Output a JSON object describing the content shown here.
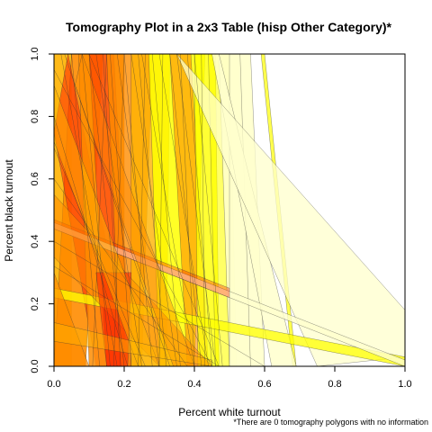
{
  "chart_data": {
    "type": "tomography",
    "title": "Tomography Plot in a 2x3 Table (hisp Other Category)*",
    "xlabel": "Percent white turnout",
    "ylabel": "Percent black turnout",
    "footnote": "*There are 0 tomography polygons with no information",
    "xlim": [
      0,
      1
    ],
    "ylim": [
      0,
      1
    ],
    "xticks": [
      "0.0",
      "0.2",
      "0.4",
      "0.6",
      "0.8",
      "1.0"
    ],
    "yticks": [
      "0.0",
      "0.2",
      "0.4",
      "0.6",
      "0.8",
      "1.0"
    ],
    "colors": {
      "red": "#ff2200",
      "orange": "#ff8c00",
      "amber": "#ffb300",
      "yellow": "#ffff00",
      "pale": "#ffffcc",
      "outline": "#333333"
    },
    "polygons": [
      {
        "color": "amber",
        "opacity": 0.9,
        "points": [
          [
            0,
            0
          ],
          [
            0.05,
            0
          ],
          [
            0.05,
            1
          ],
          [
            0,
            1
          ]
        ]
      },
      {
        "color": "orange",
        "opacity": 0.9,
        "points": [
          [
            0.05,
            1
          ],
          [
            0.14,
            1
          ],
          [
            0.09,
            0
          ],
          [
            0.0,
            0
          ]
        ]
      },
      {
        "color": "red",
        "opacity": 0.55,
        "points": [
          [
            0.0,
            0.75
          ],
          [
            0.04,
            1
          ],
          [
            0.22,
            0.0
          ],
          [
            0.12,
            0.0
          ]
        ]
      },
      {
        "color": "orange",
        "opacity": 0.85,
        "points": [
          [
            0.07,
            1
          ],
          [
            0.2,
            1
          ],
          [
            0.2,
            0
          ],
          [
            0.1,
            0
          ]
        ]
      },
      {
        "color": "red",
        "opacity": 0.5,
        "points": [
          [
            0.1,
            1
          ],
          [
            0.17,
            1
          ],
          [
            0.22,
            0
          ],
          [
            0.15,
            0
          ]
        ]
      },
      {
        "color": "orange",
        "opacity": 0.8,
        "points": [
          [
            0.15,
            1
          ],
          [
            0.28,
            1
          ],
          [
            0.25,
            0
          ],
          [
            0.19,
            0
          ]
        ]
      },
      {
        "color": "amber",
        "opacity": 0.8,
        "points": [
          [
            0.22,
            1
          ],
          [
            0.33,
            1
          ],
          [
            0.32,
            0
          ],
          [
            0.22,
            0
          ]
        ]
      },
      {
        "color": "yellow",
        "opacity": 0.85,
        "points": [
          [
            0.27,
            1
          ],
          [
            0.43,
            1
          ],
          [
            0.4,
            0
          ],
          [
            0.3,
            0
          ]
        ]
      },
      {
        "color": "orange",
        "opacity": 0.6,
        "points": [
          [
            0.33,
            1
          ],
          [
            0.39,
            1
          ],
          [
            0.44,
            0
          ],
          [
            0.38,
            0
          ]
        ]
      },
      {
        "color": "yellow",
        "opacity": 0.8,
        "points": [
          [
            0.4,
            1
          ],
          [
            0.46,
            1
          ],
          [
            0.47,
            0
          ],
          [
            0.41,
            0
          ]
        ]
      },
      {
        "color": "yellow",
        "opacity": 0.6,
        "points": [
          [
            0.44,
            1
          ],
          [
            0.5,
            1
          ],
          [
            0.52,
            0
          ],
          [
            0.46,
            0
          ]
        ]
      },
      {
        "color": "pale",
        "opacity": 0.9,
        "points": [
          [
            0.47,
            1
          ],
          [
            0.56,
            1
          ],
          [
            0.6,
            0
          ],
          [
            0.5,
            0
          ]
        ]
      },
      {
        "color": "pale",
        "opacity": 0.8,
        "points": [
          [
            0.5,
            1
          ],
          [
            0.53,
            1
          ],
          [
            0.56,
            0
          ],
          [
            0.5,
            0
          ]
        ]
      },
      {
        "color": "yellow",
        "opacity": 0.7,
        "points": [
          [
            0.59,
            1
          ],
          [
            0.6,
            1
          ],
          [
            0.69,
            0
          ],
          [
            0.68,
            0
          ]
        ]
      },
      {
        "color": "pale",
        "opacity": 0.85,
        "points": [
          [
            0.45,
            1
          ],
          [
            0.47,
            1
          ],
          [
            0.69,
            0
          ],
          [
            0.62,
            0
          ]
        ]
      },
      {
        "color": "pale",
        "opacity": 0.75,
        "points": [
          [
            0.35,
            1
          ],
          [
            1.0,
            0.18
          ],
          [
            1.0,
            0.03
          ],
          [
            0.75,
            0.0
          ]
        ]
      },
      {
        "color": "yellow",
        "opacity": 0.75,
        "points": [
          [
            0.0,
            0.25
          ],
          [
            1.0,
            0.03
          ],
          [
            1.0,
            0.0
          ],
          [
            0.0,
            0.22
          ]
        ]
      },
      {
        "color": "pale",
        "opacity": 0.8,
        "points": [
          [
            0.0,
            0.46
          ],
          [
            1.0,
            0.02
          ],
          [
            1.0,
            0.0
          ],
          [
            0.0,
            0.44
          ]
        ]
      },
      {
        "color": "red",
        "opacity": 0.35,
        "points": [
          [
            0.0,
            0.47
          ],
          [
            0.5,
            0.25
          ],
          [
            0.5,
            0.22
          ],
          [
            0.0,
            0.44
          ]
        ]
      },
      {
        "color": "orange",
        "opacity": 0.55,
        "points": [
          [
            0.0,
            0.55
          ],
          [
            0.45,
            0.0
          ],
          [
            0.3,
            0.0
          ],
          [
            0.0,
            0.35
          ]
        ]
      },
      {
        "color": "red",
        "opacity": 0.55,
        "points": [
          [
            0.12,
            0.3
          ],
          [
            0.22,
            0.3
          ],
          [
            0.21,
            0.0
          ],
          [
            0.15,
            0.0
          ]
        ]
      },
      {
        "color": "orange",
        "opacity": 0.7,
        "points": [
          [
            0.0,
            0.3
          ],
          [
            0.1,
            0.0
          ],
          [
            0.0,
            0.0
          ]
        ]
      },
      {
        "color": "amber",
        "opacity": 0.5,
        "points": [
          [
            0.0,
            0.9
          ],
          [
            0.3,
            0.0
          ],
          [
            0.24,
            0.0
          ],
          [
            0.0,
            0.72
          ]
        ]
      },
      {
        "color": "orange",
        "opacity": 0.45,
        "points": [
          [
            0.08,
            1
          ],
          [
            0.4,
            0.0
          ],
          [
            0.34,
            0.0
          ],
          [
            0.06,
            0.9
          ]
        ]
      },
      {
        "color": "amber",
        "opacity": 0.45,
        "points": [
          [
            0.0,
            0.14
          ],
          [
            0.45,
            0.02
          ],
          [
            0.45,
            0.0
          ],
          [
            0.0,
            0.08
          ]
        ]
      }
    ],
    "lines": [
      [
        [
          0.05,
          1
        ],
        [
          0.13,
          0
        ]
      ],
      [
        [
          0.1,
          1
        ],
        [
          0.2,
          0
        ]
      ],
      [
        [
          0.12,
          1
        ],
        [
          0.25,
          0
        ]
      ],
      [
        [
          0.16,
          1
        ],
        [
          0.22,
          0
        ]
      ],
      [
        [
          0.18,
          1
        ],
        [
          0.3,
          0
        ]
      ],
      [
        [
          0.2,
          1
        ],
        [
          0.28,
          0
        ]
      ],
      [
        [
          0.22,
          1
        ],
        [
          0.35,
          0
        ]
      ],
      [
        [
          0.24,
          1
        ],
        [
          0.32,
          0
        ]
      ],
      [
        [
          0.25,
          1
        ],
        [
          0.4,
          0
        ]
      ],
      [
        [
          0.28,
          1
        ],
        [
          0.36,
          0
        ]
      ],
      [
        [
          0.3,
          1
        ],
        [
          0.44,
          0
        ]
      ],
      [
        [
          0.33,
          1
        ],
        [
          0.42,
          0
        ]
      ],
      [
        [
          0.35,
          1
        ],
        [
          0.46,
          0
        ]
      ],
      [
        [
          0.38,
          1
        ],
        [
          0.45,
          0
        ]
      ],
      [
        [
          0.4,
          1
        ],
        [
          0.48,
          0
        ]
      ],
      [
        [
          0.02,
          1
        ],
        [
          0.18,
          0
        ]
      ],
      [
        [
          0.08,
          1
        ],
        [
          0.16,
          0
        ]
      ],
      [
        [
          0.14,
          1
        ],
        [
          0.19,
          0
        ]
      ],
      [
        [
          0.0,
          0.7
        ],
        [
          0.26,
          0
        ]
      ],
      [
        [
          0.0,
          0.8
        ],
        [
          0.21,
          0
        ]
      ],
      [
        [
          0.03,
          1
        ],
        [
          0.33,
          0
        ]
      ],
      [
        [
          0.0,
          0.6
        ],
        [
          0.38,
          0
        ]
      ],
      [
        [
          0.15,
          1
        ],
        [
          0.11,
          0
        ]
      ],
      [
        [
          0.2,
          1
        ],
        [
          0.17,
          0
        ]
      ],
      [
        [
          0.26,
          1
        ],
        [
          0.24,
          0
        ]
      ],
      [
        [
          0.31,
          1
        ],
        [
          0.3,
          0
        ]
      ],
      [
        [
          0.36,
          1
        ],
        [
          0.4,
          0
        ]
      ],
      [
        [
          0.42,
          1
        ],
        [
          0.43,
          0
        ]
      ],
      [
        [
          0.0,
          0.4
        ],
        [
          0.6,
          0.0
        ]
      ],
      [
        [
          0.0,
          0.32
        ],
        [
          0.47,
          0.0
        ]
      ],
      [
        [
          0.0,
          0.95
        ],
        [
          0.45,
          0.0
        ]
      ],
      [
        [
          0.1,
          1
        ],
        [
          0.47,
          0
        ]
      ]
    ]
  }
}
